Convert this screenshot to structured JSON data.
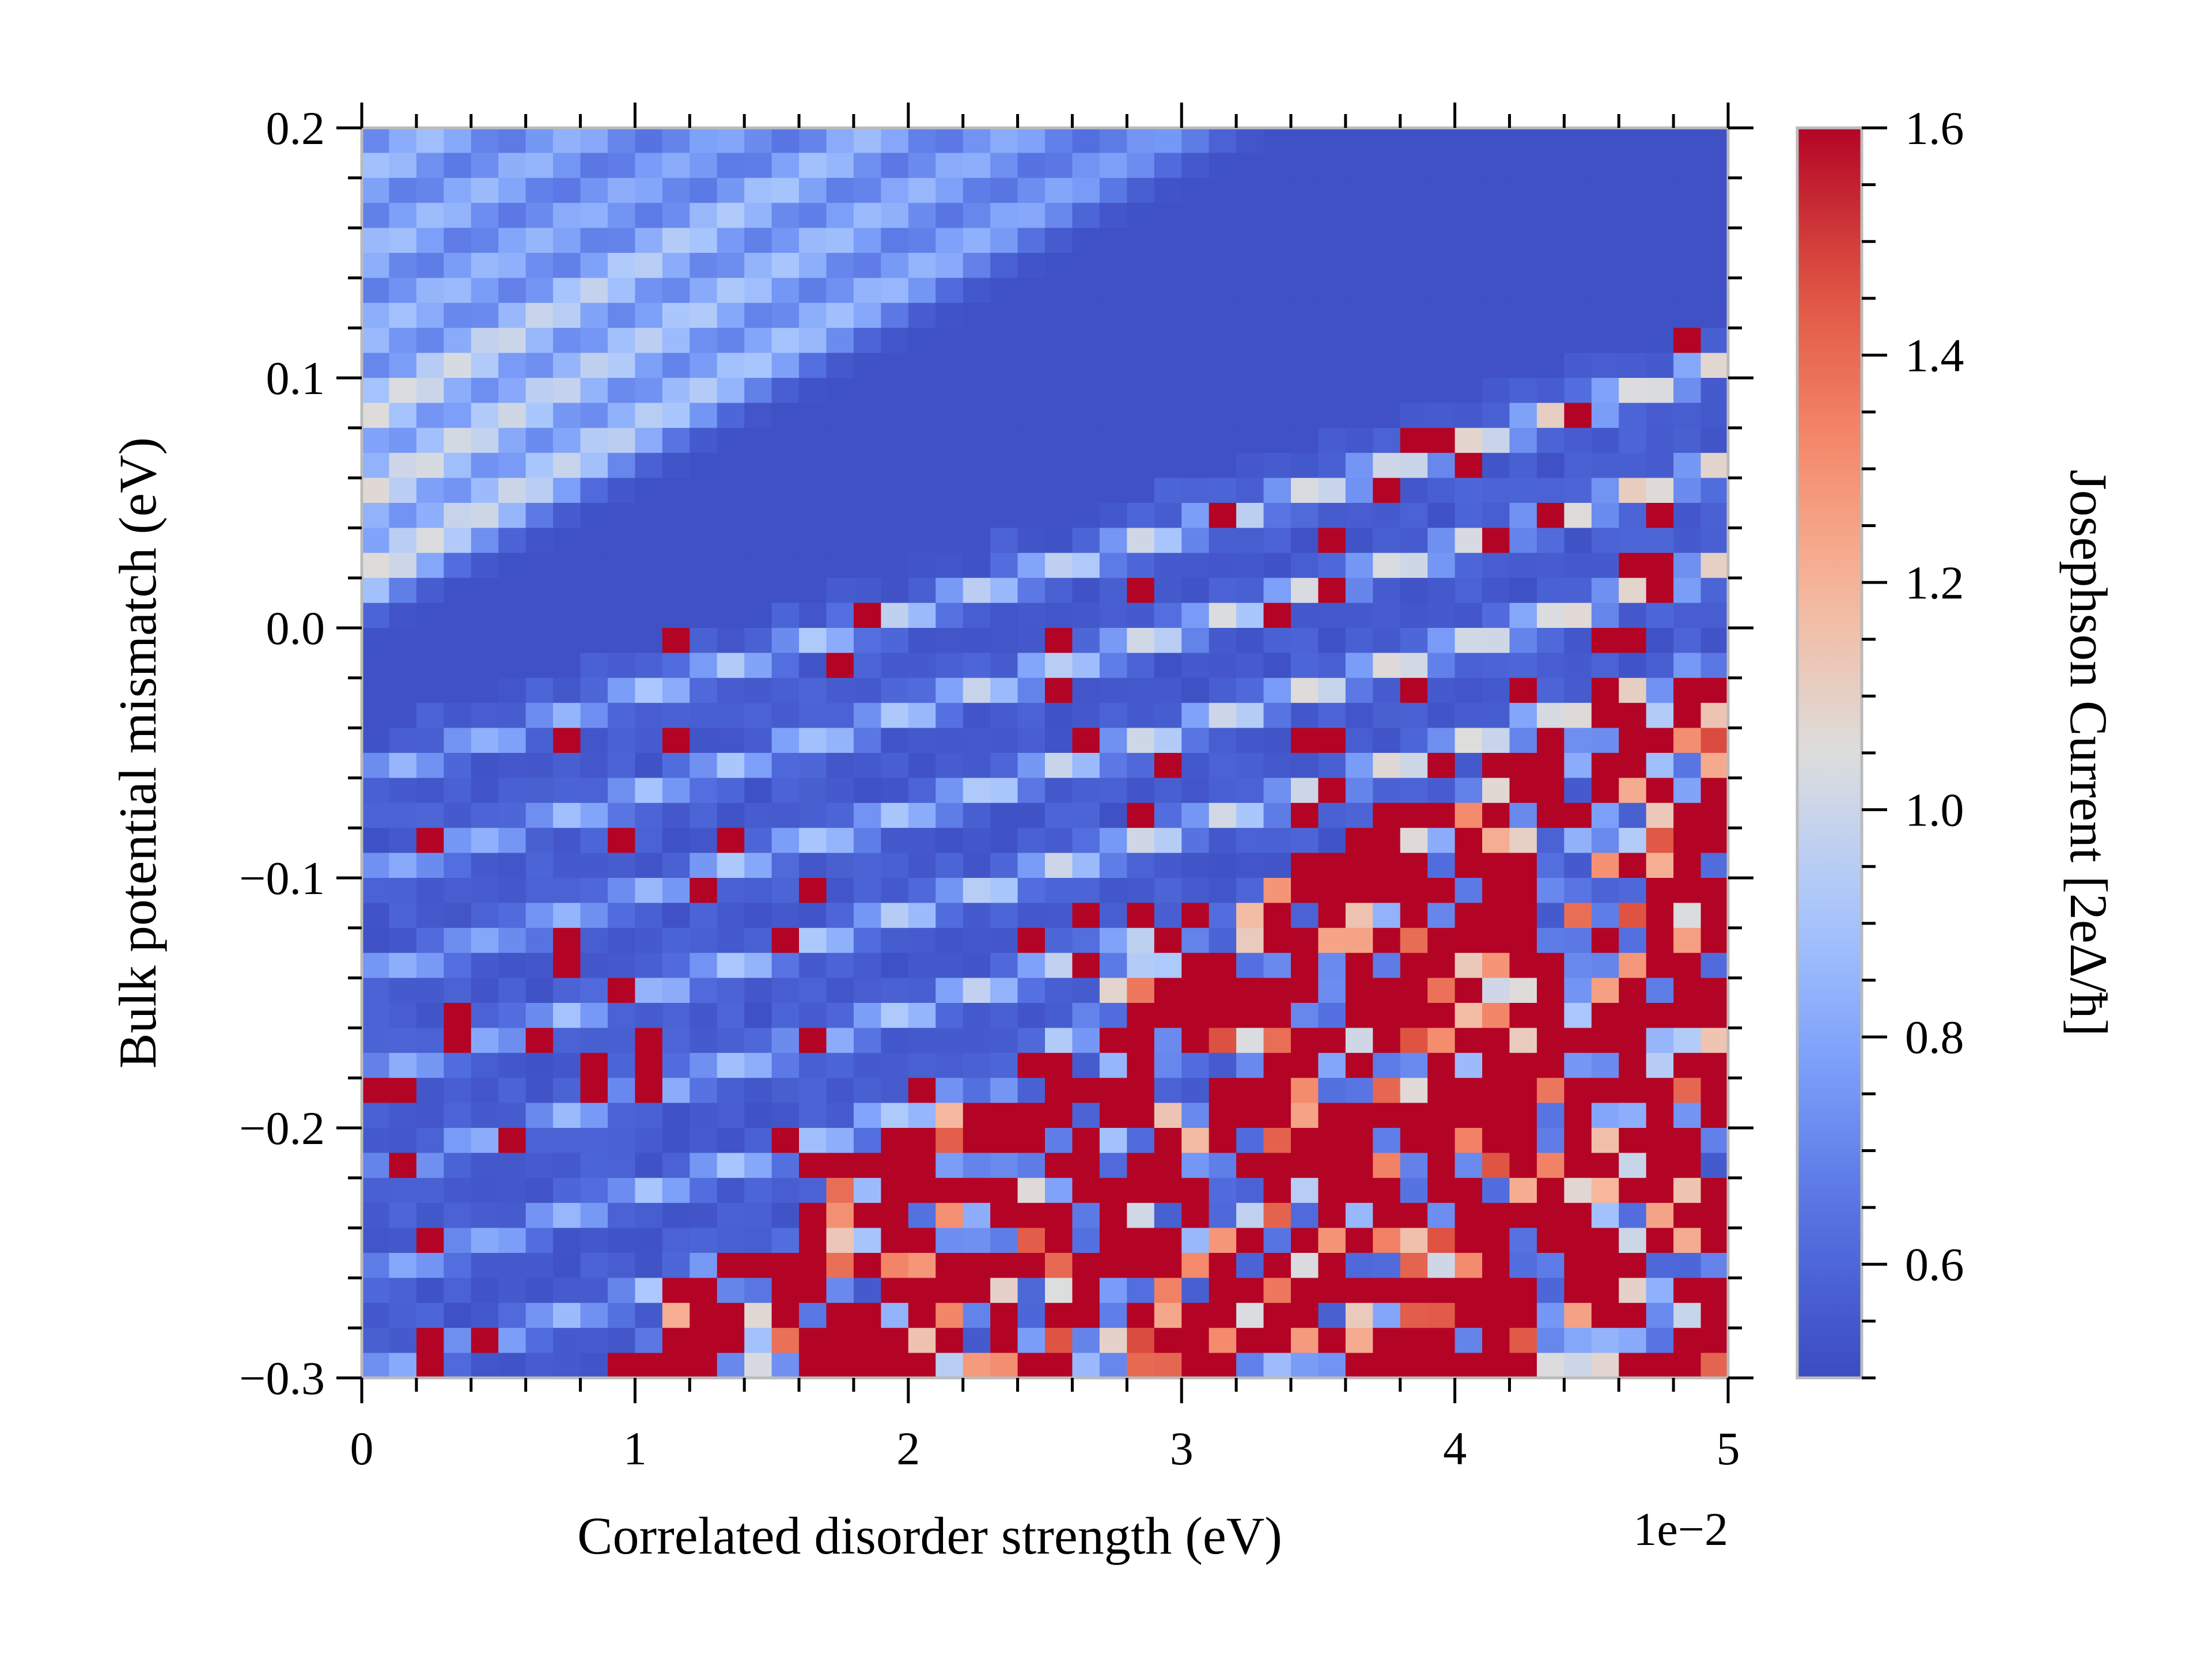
{
  "chart_data": {
    "type": "heatmap",
    "xlabel": "Correlated disorder strength (eV)",
    "ylabel": "Bulk potential mismatch (eV)",
    "x_offset_text": "1e−2",
    "colorbar_label": "Josephson Current [2eΔ/ħ]",
    "x_range": [
      0,
      5
    ],
    "x_scale_factor": 0.01,
    "y_range": [
      -0.3,
      0.2
    ],
    "colorbar_range": [
      0.5,
      1.6
    ],
    "colormap": "coolwarm",
    "grid": false,
    "x_ticks": [
      {
        "value": 0,
        "label": "0"
      },
      {
        "value": 1,
        "label": "1"
      },
      {
        "value": 2,
        "label": "2"
      },
      {
        "value": 3,
        "label": "3"
      },
      {
        "value": 4,
        "label": "4"
      },
      {
        "value": 5,
        "label": "5"
      }
    ],
    "y_ticks": [
      {
        "value": 0.2,
        "label": "0.2"
      },
      {
        "value": 0.1,
        "label": "0.1"
      },
      {
        "value": 0.0,
        "label": "0.0"
      },
      {
        "value": -0.1,
        "label": "−0.1"
      },
      {
        "value": -0.2,
        "label": "−0.2"
      },
      {
        "value": -0.3,
        "label": "−0.3"
      }
    ],
    "colorbar_ticks": [
      {
        "value": 1.6,
        "label": "1.6"
      },
      {
        "value": 1.4,
        "label": "1.4"
      },
      {
        "value": 1.2,
        "label": "1.2"
      },
      {
        "value": 1.0,
        "label": "1.0"
      },
      {
        "value": 0.8,
        "label": "0.8"
      },
      {
        "value": 0.6,
        "label": "0.6"
      }
    ],
    "grid_resolution": {
      "nx": 50,
      "ny": 50
    },
    "features": {
      "background_value": 0.52,
      "upper_left_band_slope_per_x": 0.06,
      "upper_left_band_offset": 0.0,
      "lower_stripe_slope_per_x": 0.033,
      "chaotic_region_boundary": [
        {
          "x": 0.8,
          "y": -0.3
        },
        {
          "x": 2.0,
          "y": -0.2
        },
        {
          "x": 3.0,
          "y": -0.12
        },
        {
          "x": 4.0,
          "y": -0.06
        },
        {
          "x": 5.0,
          "y": -0.01
        }
      ]
    }
  },
  "colors": {
    "cmap_low": "#3b4cc0",
    "cmap_mid": "#dddddd",
    "cmap_high": "#b40426",
    "frame": "#bbbbbb"
  }
}
